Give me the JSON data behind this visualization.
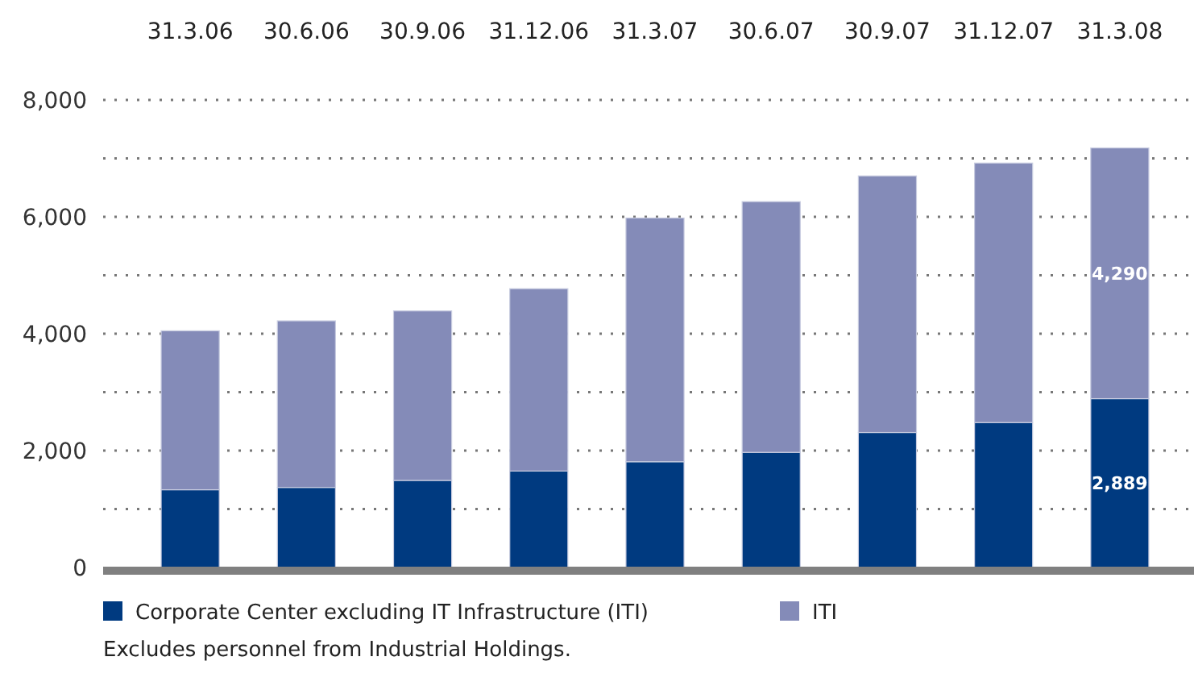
{
  "chart_data": {
    "type": "bar",
    "stacked": true,
    "categories": [
      "31.3.06",
      "30.6.06",
      "30.9.06",
      "31.12.06",
      "31.3.07",
      "30.6.07",
      "30.9.07",
      "31.12.07",
      "31.3.08"
    ],
    "series": [
      {
        "name": "Corporate Center excluding IT Infrastructure (ITI)",
        "color": "#003a80",
        "values": [
          1330,
          1370,
          1490,
          1650,
          1810,
          1970,
          2310,
          2480,
          2889
        ],
        "value_labels": [
          null,
          null,
          null,
          null,
          null,
          null,
          null,
          null,
          "2,889"
        ]
      },
      {
        "name": "ITI",
        "color": "#848bb8",
        "values": [
          2720,
          2850,
          2900,
          3120,
          4170,
          4290,
          4390,
          4440,
          4290
        ],
        "value_labels": [
          null,
          null,
          null,
          null,
          null,
          null,
          null,
          null,
          "4,290"
        ]
      }
    ],
    "ylim": [
      0,
      8000
    ],
    "yticks": [
      0,
      {
        "value": 1000,
        "label": null
      },
      {
        "value": 2000,
        "label": "2,000"
      },
      {
        "value": 3000,
        "label": null
      },
      {
        "value": 4000,
        "label": "4,000"
      },
      {
        "value": 5000,
        "label": null
      },
      {
        "value": 6000,
        "label": "6,000"
      },
      {
        "value": 7000,
        "label": null
      },
      {
        "value": 8000,
        "label": "8,000"
      }
    ],
    "grid": "y",
    "legend": "bottom",
    "annotations": [
      "Excludes personnel from Industrial Holdings."
    ]
  }
}
